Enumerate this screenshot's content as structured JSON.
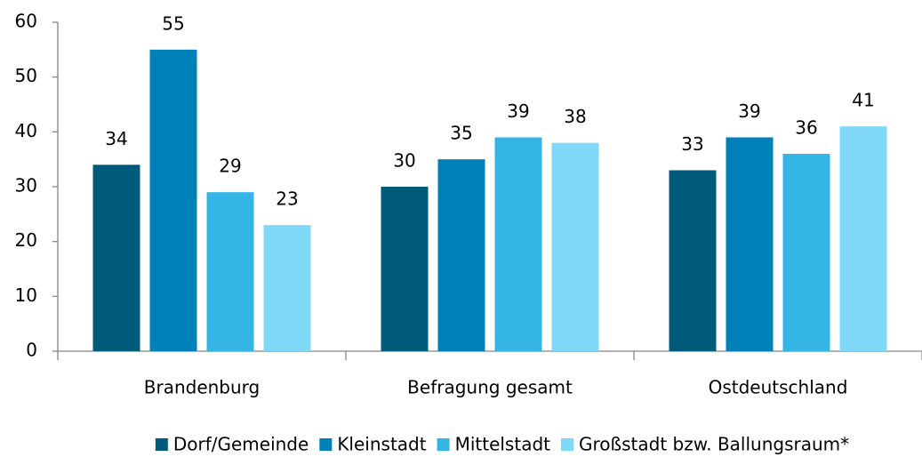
{
  "chart_data": {
    "type": "bar",
    "categories": [
      "Brandenburg",
      "Befragung gesamt",
      "Ostdeutschland"
    ],
    "series": [
      {
        "name": "Dorf/Gemeinde",
        "color": "#005a7a",
        "values": [
          34,
          30,
          33
        ]
      },
      {
        "name": "Kleinstadt",
        "color": "#0080b8",
        "values": [
          55,
          35,
          39
        ]
      },
      {
        "name": "Mittelstadt",
        "color": "#35b4e6",
        "values": [
          29,
          39,
          36
        ]
      },
      {
        "name": "Großstadt bzw. Ballungsraum*",
        "color": "#7fd8f7",
        "values": [
          23,
          38,
          41
        ]
      }
    ],
    "ylim": [
      0,
      60
    ],
    "yticks": [
      0,
      10,
      20,
      30,
      40,
      50,
      60
    ],
    "grid": false,
    "legend": "bottom"
  }
}
